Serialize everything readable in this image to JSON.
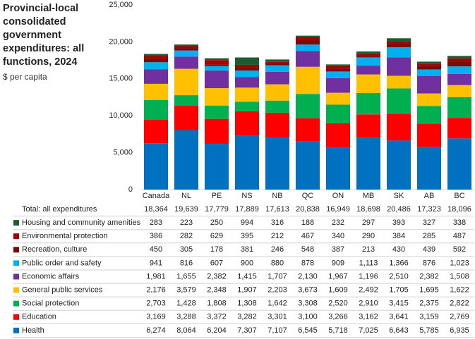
{
  "chart_data": {
    "type": "stacked-bar",
    "title": "Provincial-local consolidated government expenditures: all functions, 2024",
    "subtitle": "$ per capita",
    "categories": [
      "Canada",
      "NL",
      "PE",
      "NS",
      "NB",
      "QC",
      "ON",
      "MB",
      "SK",
      "AB",
      "BC"
    ],
    "ylim": [
      0,
      25000
    ],
    "yticks": [
      0,
      {
        "value": 5000,
        "label": "5,000"
      },
      {
        "value": 10000,
        "label": "10,000"
      },
      {
        "value": 15000,
        "label": "15,000"
      },
      {
        "value": 20000,
        "label": "20,000"
      },
      {
        "value": 25000,
        "label": "25,000"
      }
    ],
    "total": {
      "name": "Total: all expenditures",
      "values": [
        18364,
        19639,
        17779,
        17889,
        17613,
        20838,
        16949,
        18698,
        20486,
        17323,
        18096
      ],
      "value_labels": [
        "18,364",
        "19,639",
        "17,779",
        "17,889",
        "17,613",
        "20,838",
        "16,949",
        "18,698",
        "20,486",
        "17,323",
        "18,096"
      ]
    },
    "series": [
      {
        "name": "Health",
        "color": "#0070c0",
        "values": [
          6274,
          8064,
          6204,
          7307,
          7107,
          6545,
          5718,
          7025,
          6643,
          5785,
          6935
        ],
        "value_labels": [
          "6,274",
          "8,064",
          "6,204",
          "7,307",
          "7,107",
          "6,545",
          "5,718",
          "7,025",
          "6,643",
          "5,785",
          "6,935"
        ]
      },
      {
        "name": "Education",
        "color": "#ff0000",
        "values": [
          3169,
          3288,
          3372,
          3282,
          3301,
          3100,
          3266,
          3162,
          3641,
          3159,
          2769
        ],
        "value_labels": [
          "3,169",
          "3,288",
          "3,372",
          "3,282",
          "3,301",
          "3,100",
          "3,266",
          "3,162",
          "3,641",
          "3,159",
          "2,769"
        ]
      },
      {
        "name": "Social protection",
        "color": "#00b050",
        "values": [
          2703,
          1428,
          1808,
          1308,
          1642,
          3308,
          2520,
          2910,
          3415,
          2375,
          2822
        ],
        "value_labels": [
          "2,703",
          "1,428",
          "1,808",
          "1,308",
          "1,642",
          "3,308",
          "2,520",
          "2,910",
          "3,415",
          "2,375",
          "2,822"
        ]
      },
      {
        "name": "General public services",
        "color": "#ffc000",
        "values": [
          2176,
          3579,
          2348,
          1907,
          2203,
          3673,
          1609,
          2492,
          1705,
          1695,
          1622
        ],
        "value_labels": [
          "2,176",
          "3,579",
          "2,348",
          "1,907",
          "2,203",
          "3,673",
          "1,609",
          "2,492",
          "1,705",
          "1,695",
          "1,622"
        ]
      },
      {
        "name": "Economic affairs",
        "color": "#7030a0",
        "values": [
          1981,
          1655,
          2382,
          1415,
          1707,
          2130,
          1967,
          1196,
          2510,
          2382,
          1508
        ],
        "value_labels": [
          "1,981",
          "1,655",
          "2,382",
          "1,415",
          "1,707",
          "2,130",
          "1,967",
          "1,196",
          "2,510",
          "2,382",
          "1,508"
        ]
      },
      {
        "name": "Public order and safety",
        "color": "#00b0f0",
        "values": [
          941,
          816,
          607,
          900,
          880,
          878,
          909,
          1113,
          1366,
          876,
          1023
        ],
        "value_labels": [
          "941",
          "816",
          "607",
          "900",
          "880",
          "878",
          "909",
          "1,113",
          "1,366",
          "876",
          "1,023"
        ]
      },
      {
        "name": "Recreation, culture",
        "color": "#7b0a0a",
        "values": [
          450,
          305,
          178,
          381,
          246,
          548,
          387,
          213,
          430,
          439,
          592
        ],
        "value_labels": [
          "450",
          "305",
          "178",
          "381",
          "246",
          "548",
          "387",
          "213",
          "430",
          "439",
          "592"
        ]
      },
      {
        "name": "Environmental protection",
        "color": "#a50000",
        "values": [
          386,
          282,
          629,
          395,
          212,
          467,
          340,
          290,
          384,
          285,
          487
        ],
        "value_labels": [
          "386",
          "282",
          "629",
          "395",
          "212",
          "467",
          "340",
          "290",
          "384",
          "285",
          "487"
        ]
      },
      {
        "name": "Housing and community amenities",
        "color": "#1e5c30",
        "values": [
          283,
          223,
          250,
          994,
          316,
          188,
          232,
          297,
          393,
          327,
          338
        ],
        "value_labels": [
          "283",
          "223",
          "250",
          "994",
          "316",
          "188",
          "232",
          "297",
          "393",
          "327",
          "338"
        ]
      }
    ]
  }
}
